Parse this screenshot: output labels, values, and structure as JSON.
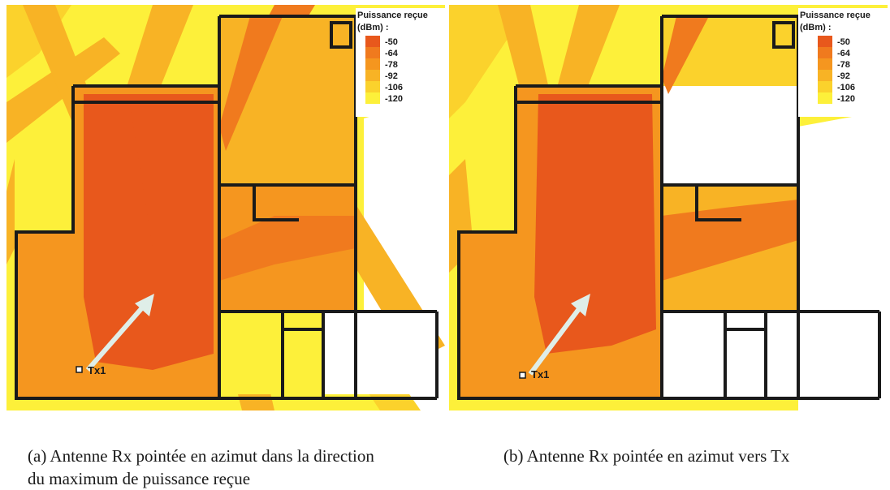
{
  "panels": [
    {
      "id": "a",
      "legend": {
        "title_line1": "Puissance reçue",
        "title_line2": "(dBm) :"
      },
      "transmitter_label": "Tx1",
      "caption_line1": "(a) Antenne Rx pointée en azimut dans la direction",
      "caption_line2": "du maximum de puissance reçue"
    },
    {
      "id": "b",
      "legend": {
        "title_line1": "Puissance reçue",
        "title_line2": "(dBm) :"
      },
      "transmitter_label": "Tx1",
      "caption_line1": "(b) Antenne Rx pointée en azimut vers Tx",
      "caption_line2": ""
    }
  ],
  "legend_scale": [
    {
      "label": "-50",
      "color": "#e8581c"
    },
    {
      "label": "-64",
      "color": "#f07a1e"
    },
    {
      "label": "-78",
      "color": "#f5961f"
    },
    {
      "label": "-92",
      "color": "#f8b325"
    },
    {
      "label": "-106",
      "color": "#fbd22c"
    },
    {
      "label": "-120",
      "color": "#fdf03a"
    }
  ]
}
